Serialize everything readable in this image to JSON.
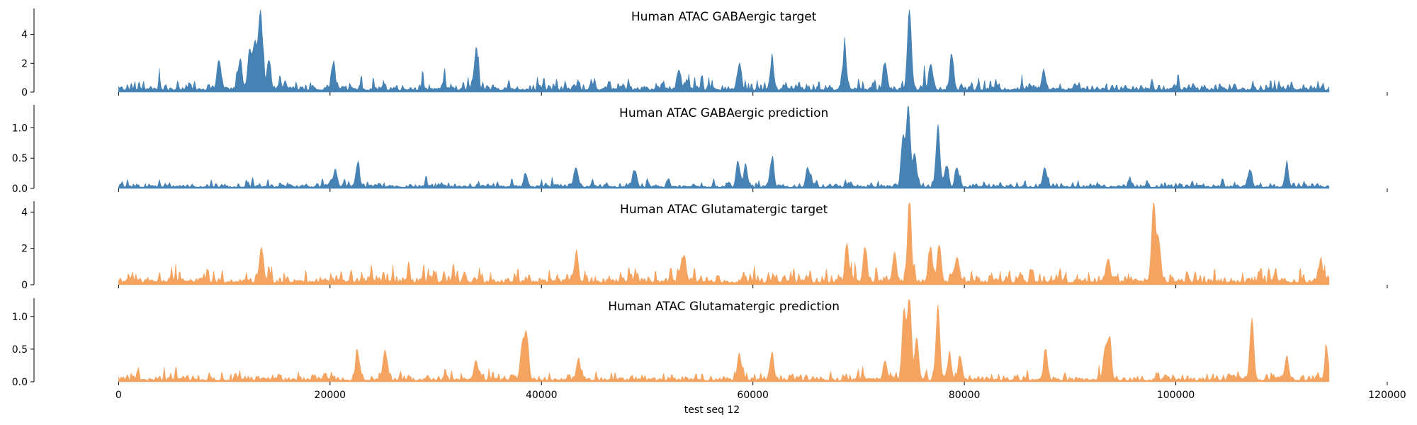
{
  "chart_data": {
    "type": "area",
    "xlabel": "test seq 12",
    "x_range": [
      0,
      114500
    ],
    "xlim": [
      -8000,
      120000
    ],
    "x_ticks": [
      0,
      20000,
      40000,
      60000,
      80000,
      100000,
      120000
    ],
    "x_tick_labels": [
      "0",
      "20000",
      "40000",
      "60000",
      "80000",
      "100000",
      "120000"
    ],
    "grid": false,
    "legend": "none",
    "panels": [
      {
        "title": "Human ATAC GABAergic target",
        "color": "#4682b4",
        "ylim": [
          0,
          5.8
        ],
        "y_ticks": [
          0,
          2,
          4
        ],
        "y_tick_labels": [
          "0",
          "2",
          "4"
        ],
        "baseline": 0.5,
        "noise_amp": 1.1,
        "peaks": [
          {
            "x": 9500,
            "y": 1.8
          },
          {
            "x": 11500,
            "y": 1.9
          },
          {
            "x": 12400,
            "y": 2.6
          },
          {
            "x": 12900,
            "y": 3.0
          },
          {
            "x": 13400,
            "y": 4.8
          },
          {
            "x": 14200,
            "y": 2.1
          },
          {
            "x": 20300,
            "y": 1.6
          },
          {
            "x": 33800,
            "y": 2.3
          },
          {
            "x": 53000,
            "y": 1.4
          },
          {
            "x": 58700,
            "y": 1.6
          },
          {
            "x": 61800,
            "y": 1.8
          },
          {
            "x": 68700,
            "y": 2.3
          },
          {
            "x": 72500,
            "y": 1.8
          },
          {
            "x": 74800,
            "y": 5.6
          },
          {
            "x": 76800,
            "y": 1.7
          },
          {
            "x": 78800,
            "y": 1.9
          },
          {
            "x": 87500,
            "y": 1.3
          }
        ]
      },
      {
        "title": "Human ATAC GABAergic prediction",
        "color": "#4682b4",
        "ylim": [
          0,
          1.38
        ],
        "y_ticks": [
          0.0,
          0.5,
          1.0
        ],
        "y_tick_labels": [
          "0.0",
          "0.5",
          "1.0"
        ],
        "baseline": 0.07,
        "noise_amp": 0.13,
        "peaks": [
          {
            "x": 20500,
            "y": 0.29
          },
          {
            "x": 22600,
            "y": 0.36
          },
          {
            "x": 38500,
            "y": 0.22
          },
          {
            "x": 43300,
            "y": 0.3
          },
          {
            "x": 48800,
            "y": 0.27
          },
          {
            "x": 58600,
            "y": 0.39
          },
          {
            "x": 59300,
            "y": 0.33
          },
          {
            "x": 61800,
            "y": 0.41
          },
          {
            "x": 65200,
            "y": 0.3
          },
          {
            "x": 74200,
            "y": 0.8
          },
          {
            "x": 74700,
            "y": 1.32
          },
          {
            "x": 75300,
            "y": 0.55
          },
          {
            "x": 77500,
            "y": 0.98
          },
          {
            "x": 78300,
            "y": 0.35
          },
          {
            "x": 79300,
            "y": 0.32
          },
          {
            "x": 87600,
            "y": 0.3
          },
          {
            "x": 107000,
            "y": 0.24
          },
          {
            "x": 110500,
            "y": 0.28
          }
        ]
      },
      {
        "title": "Human ATAC Glutamatergic target",
        "color": "#f4a460",
        "ylim": [
          0,
          4.6
        ],
        "y_ticks": [
          0,
          2,
          4
        ],
        "y_tick_labels": [
          "0",
          "2",
          "4"
        ],
        "baseline": 0.45,
        "noise_amp": 0.85,
        "peaks": [
          {
            "x": 13500,
            "y": 1.9
          },
          {
            "x": 43300,
            "y": 1.5
          },
          {
            "x": 53500,
            "y": 1.5
          },
          {
            "x": 68900,
            "y": 2.0
          },
          {
            "x": 70600,
            "y": 1.8
          },
          {
            "x": 73400,
            "y": 1.5
          },
          {
            "x": 74800,
            "y": 4.5
          },
          {
            "x": 76800,
            "y": 1.9
          },
          {
            "x": 77600,
            "y": 2.0
          },
          {
            "x": 79300,
            "y": 1.4
          },
          {
            "x": 93600,
            "y": 1.3
          },
          {
            "x": 97900,
            "y": 4.3
          },
          {
            "x": 98400,
            "y": 2.2
          },
          {
            "x": 113700,
            "y": 1.2
          }
        ]
      },
      {
        "title": "Human ATAC Glutamatergic prediction",
        "color": "#f4a460",
        "ylim": [
          0,
          1.28
        ],
        "y_ticks": [
          0.0,
          0.5,
          1.0
        ],
        "y_tick_labels": [
          "0.0",
          "0.5",
          "1.0"
        ],
        "baseline": 0.08,
        "noise_amp": 0.15,
        "peaks": [
          {
            "x": 22600,
            "y": 0.42
          },
          {
            "x": 25200,
            "y": 0.46
          },
          {
            "x": 33800,
            "y": 0.3
          },
          {
            "x": 38200,
            "y": 0.55
          },
          {
            "x": 38600,
            "y": 0.66
          },
          {
            "x": 43500,
            "y": 0.3
          },
          {
            "x": 58700,
            "y": 0.36
          },
          {
            "x": 61800,
            "y": 0.4
          },
          {
            "x": 72500,
            "y": 0.3
          },
          {
            "x": 74300,
            "y": 1.05
          },
          {
            "x": 74800,
            "y": 1.2
          },
          {
            "x": 75500,
            "y": 0.65
          },
          {
            "x": 77500,
            "y": 1.1
          },
          {
            "x": 78600,
            "y": 0.38
          },
          {
            "x": 79600,
            "y": 0.36
          },
          {
            "x": 87700,
            "y": 0.42
          },
          {
            "x": 93300,
            "y": 0.45
          },
          {
            "x": 93700,
            "y": 0.58
          },
          {
            "x": 107200,
            "y": 0.88
          },
          {
            "x": 110500,
            "y": 0.35
          },
          {
            "x": 114300,
            "y": 0.4
          }
        ]
      }
    ]
  }
}
